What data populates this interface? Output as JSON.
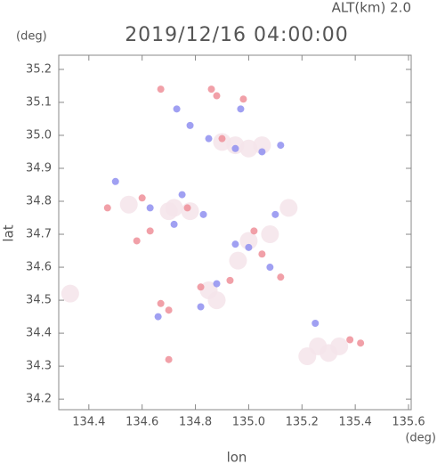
{
  "chart_data": {
    "type": "scatter",
    "title": "2019/12/16 04:00:00",
    "subtitle": "ALT(km) 2.0",
    "y_unit": "(deg)",
    "x_unit": "(deg)",
    "x_label": "lon",
    "y_label": "lat",
    "xlim": [
      134.287,
      135.61
    ],
    "ylim": [
      34.168,
      35.243
    ],
    "xticks": [
      134.4,
      134.6,
      134.8,
      {
        "value": 135,
        "label": "135.0"
      },
      135.2,
      135.4,
      135.6
    ],
    "yticks": [
      34.2,
      34.3,
      34.4,
      34.5,
      34.6,
      34.7,
      34.8,
      34.9,
      {
        "value": 35,
        "label": "35.0"
      },
      35.1,
      35.2
    ],
    "series": [
      {
        "color": "#f4e4ea",
        "x": [
          134.72,
          134.78,
          134.9,
          134.95,
          135.0,
          135.05,
          135.3,
          135.26,
          135.34,
          135.22,
          134.85,
          134.88,
          134.7,
          135.0,
          135.08,
          134.96,
          135.15,
          134.33,
          134.55
        ],
        "values": [
          34.78,
          34.77,
          34.98,
          34.97,
          34.96,
          34.97,
          34.34,
          34.36,
          34.36,
          34.33,
          34.53,
          34.5,
          34.77,
          34.68,
          34.7,
          34.62,
          34.78,
          34.52,
          34.79
        ]
      },
      {
        "color": "#ee8f99",
        "x": [
          134.67,
          134.86,
          134.88,
          134.98,
          134.63,
          134.67,
          134.7,
          135.42,
          134.9,
          134.6,
          134.47,
          134.58,
          135.05,
          135.12,
          134.82,
          134.77,
          134.93,
          135.02,
          135.38,
          134.7
        ],
        "values": [
          35.14,
          35.14,
          35.12,
          35.11,
          34.71,
          34.49,
          34.47,
          34.37,
          34.99,
          34.81,
          34.78,
          34.68,
          34.64,
          34.57,
          34.54,
          34.78,
          34.56,
          34.71,
          34.38,
          34.32
        ],
        "size": 4
      },
      {
        "color": "#8f8ff0",
        "x": [
          134.73,
          134.85,
          134.95,
          135.05,
          135.12,
          134.63,
          134.75,
          134.83,
          135.1,
          134.82,
          134.88,
          134.95,
          135.25,
          134.5,
          134.72,
          134.78,
          135.0,
          135.08,
          134.97,
          134.66
        ],
        "values": [
          35.08,
          34.99,
          34.96,
          34.95,
          34.97,
          34.78,
          34.82,
          34.76,
          34.76,
          34.48,
          34.55,
          34.67,
          34.43,
          34.86,
          34.73,
          35.03,
          34.66,
          34.6,
          35.08,
          34.45
        ],
        "size": 4
      }
    ]
  }
}
